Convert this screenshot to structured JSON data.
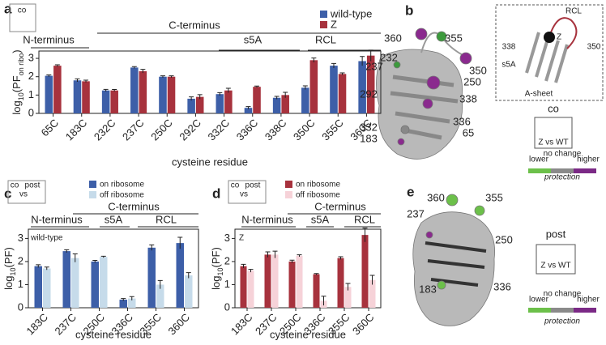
{
  "chart_data": [
    {
      "type": "bar",
      "panel": "a",
      "y_label": [
        "log",
        "10",
        "(PF",
        "on ribo",
        ")"
      ],
      "x_label": "cysteine residue",
      "categories": [
        "65C",
        "183C",
        "232C",
        "237C",
        "250C",
        "292C",
        "332C",
        "336C",
        "338C",
        "350C",
        "355C",
        "360C"
      ],
      "series": [
        {
          "name": "wild-type",
          "color": "#3d5fa8",
          "values": [
            2.05,
            1.8,
            1.25,
            2.5,
            2.0,
            0.8,
            1.05,
            0.3,
            0.85,
            1.4,
            2.6,
            2.85
          ],
          "errors": [
            0.05,
            0.08,
            0.06,
            0.05,
            0.05,
            0.1,
            0.08,
            0.07,
            0.08,
            0.1,
            0.12,
            0.25
          ]
        },
        {
          "name": "Z",
          "color": "#a7323d",
          "values": [
            2.6,
            1.75,
            1.25,
            2.3,
            2.0,
            0.9,
            1.25,
            1.45,
            1.0,
            2.9,
            2.15,
            3.15
          ],
          "errors": [
            0.05,
            0.06,
            0.05,
            0.1,
            0.05,
            0.12,
            0.12,
            0.04,
            0.15,
            0.12,
            0.06,
            0.3
          ]
        }
      ],
      "ylim": [
        0,
        3.4
      ],
      "yticks": [
        0,
        1,
        2,
        3
      ],
      "regions": [
        "N-terminus",
        "C-terminus",
        "s5A",
        "RCL"
      ],
      "inset": [
        "co"
      ]
    },
    {
      "type": "bar",
      "panel": "c",
      "y_label": [
        "log",
        "10",
        "(PF)"
      ],
      "x_label": "cysteine residue",
      "annotation": "wild-type",
      "categories": [
        "183C",
        "237C",
        "250C",
        "336C",
        "355C",
        "360C"
      ],
      "series": [
        {
          "name": "on ribosome",
          "color": "#3d5fa8",
          "values": [
            1.8,
            2.45,
            2.0,
            0.35,
            2.6,
            2.8
          ],
          "errors": [
            0.06,
            0.06,
            0.05,
            0.05,
            0.12,
            0.25
          ]
        },
        {
          "name": "off ribosome",
          "color": "#c6dbea",
          "values": [
            1.7,
            2.15,
            2.2,
            0.4,
            1.0,
            1.4
          ],
          "errors": [
            0.06,
            0.18,
            0.03,
            0.08,
            0.18,
            0.12
          ]
        }
      ],
      "ylim": [
        0,
        3.4
      ],
      "yticks": [
        0,
        1,
        2,
        3
      ],
      "regions": [
        "N-terminus",
        "C-terminus",
        "s5A",
        "RCL"
      ],
      "inset": [
        "co",
        "vs",
        "post"
      ]
    },
    {
      "type": "bar",
      "panel": "d",
      "y_label": [
        "log",
        "10",
        "(PF)"
      ],
      "x_label": "cysteine residue",
      "annotation": "Z",
      "categories": [
        "183C",
        "237C",
        "250C",
        "336C",
        "355C",
        "360C"
      ],
      "series": [
        {
          "name": "on ribosome",
          "color": "#a7323d",
          "values": [
            1.8,
            2.3,
            2.0,
            1.45,
            2.15,
            3.15
          ],
          "errors": [
            0.08,
            0.12,
            0.06,
            0.03,
            0.06,
            0.3
          ]
        },
        {
          "name": "off ribosome",
          "color": "#f6d2d8",
          "values": [
            1.6,
            2.3,
            2.25,
            0.3,
            0.9,
            1.2
          ],
          "errors": [
            0.06,
            0.15,
            0.04,
            0.2,
            0.15,
            0.2
          ]
        }
      ],
      "ylim": [
        0,
        3.4
      ],
      "yticks": [
        0,
        1,
        2,
        3
      ],
      "regions": [
        "N-terminus",
        "C-terminus",
        "s5A",
        "RCL"
      ],
      "inset": [
        "co",
        "vs",
        "post"
      ]
    }
  ],
  "structures": [
    {
      "panel": "b",
      "residues": [
        "360",
        "355",
        "237",
        "232",
        "350",
        "250",
        "292",
        "338",
        "336",
        "332",
        "65",
        "183"
      ],
      "inset": [
        "RCL",
        "338",
        "350",
        "Z",
        "s5A",
        "A-sheet"
      ],
      "state": "co",
      "comparison": "Z vs WT",
      "scale": [
        "lower",
        "no change",
        "higher"
      ],
      "scale_title": "protection"
    },
    {
      "panel": "e",
      "residues": [
        "360",
        "355",
        "237",
        "250",
        "183",
        "336"
      ],
      "state": "post",
      "comparison": "Z vs WT",
      "scale": [
        "lower",
        "no change",
        "higher"
      ],
      "scale_title": "protection"
    }
  ]
}
